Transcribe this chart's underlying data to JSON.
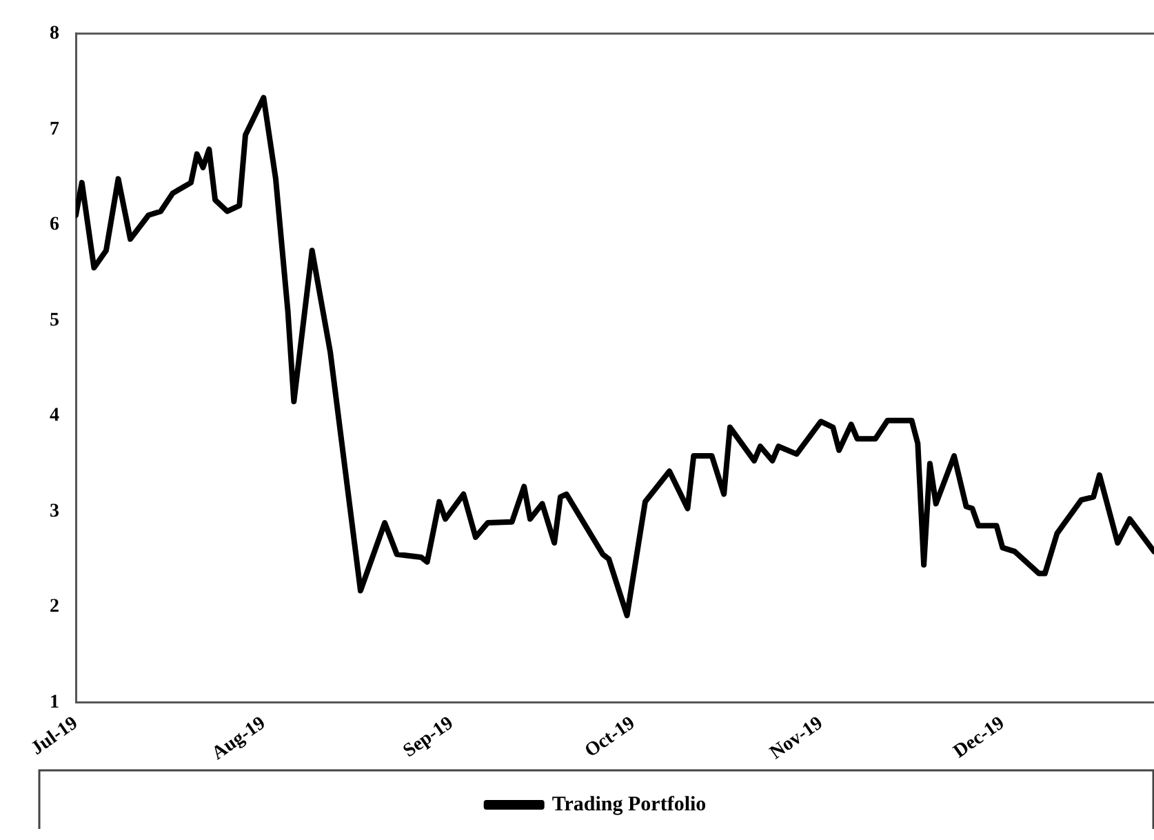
{
  "chart_data": {
    "type": "line",
    "legend": "bottom",
    "grid": false,
    "marker": "none",
    "line_style": "solid",
    "x": [
      "2019-07-01",
      "2019-07-02",
      "2019-07-04",
      "2019-07-06",
      "2019-07-08",
      "2019-07-10",
      "2019-07-13",
      "2019-07-15",
      "2019-07-17",
      "2019-07-20",
      "2019-07-21",
      "2019-07-22",
      "2019-07-23",
      "2019-07-24",
      "2019-07-26",
      "2019-07-28",
      "2019-07-29",
      "2019-08-01",
      "2019-08-03",
      "2019-08-05",
      "2019-08-06",
      "2019-08-09",
      "2019-08-12",
      "2019-08-17",
      "2019-08-21",
      "2019-08-23",
      "2019-08-27",
      "2019-08-28",
      "2019-08-30",
      "2019-08-31",
      "2019-09-03",
      "2019-09-05",
      "2019-09-07",
      "2019-09-11",
      "2019-09-13",
      "2019-09-14",
      "2019-09-16",
      "2019-09-18",
      "2019-09-19",
      "2019-09-20",
      "2019-09-26",
      "2019-09-27",
      "2019-09-30",
      "2019-10-03",
      "2019-10-07",
      "2019-10-10",
      "2019-10-11",
      "2019-10-14",
      "2019-10-16",
      "2019-10-17",
      "2019-10-21",
      "2019-10-22",
      "2019-10-24",
      "2019-10-25",
      "2019-10-28",
      "2019-11-01",
      "2019-11-03",
      "2019-11-04",
      "2019-11-06",
      "2019-11-07",
      "2019-11-10",
      "2019-11-12",
      "2019-11-16",
      "2019-11-17",
      "2019-11-18",
      "2019-11-19",
      "2019-11-20",
      "2019-11-23",
      "2019-11-25",
      "2019-11-26",
      "2019-11-27",
      "2019-11-30",
      "2019-12-01",
      "2019-12-03",
      "2019-12-07",
      "2019-12-08",
      "2019-12-10",
      "2019-12-14",
      "2019-12-16",
      "2019-12-17",
      "2019-12-20",
      "2019-12-22",
      "2019-12-26"
    ],
    "series": [
      {
        "name": "Trading Portfolio",
        "color": "#000000",
        "values": [
          6.1,
          6.44,
          5.55,
          5.73,
          6.48,
          5.85,
          6.1,
          6.14,
          6.33,
          6.44,
          6.74,
          6.6,
          6.79,
          6.26,
          6.14,
          6.2,
          6.94,
          7.33,
          6.48,
          5.1,
          4.15,
          5.73,
          4.67,
          2.17,
          2.88,
          2.55,
          2.52,
          2.47,
          3.1,
          2.92,
          3.18,
          2.73,
          2.88,
          2.89,
          3.26,
          2.92,
          3.08,
          2.67,
          3.15,
          3.18,
          2.55,
          2.5,
          1.91,
          3.1,
          3.42,
          3.03,
          3.58,
          3.58,
          3.18,
          3.88,
          3.53,
          3.68,
          3.53,
          3.68,
          3.6,
          3.94,
          3.88,
          3.64,
          3.91,
          3.76,
          3.76,
          3.95,
          3.95,
          3.71,
          2.44,
          3.5,
          3.08,
          3.58,
          3.05,
          3.03,
          2.85,
          2.85,
          2.62,
          2.58,
          2.35,
          2.35,
          2.77,
          3.12,
          3.15,
          3.38,
          2.67,
          2.92,
          2.58
        ]
      }
    ],
    "xlim": [
      "2019-07-01",
      "2019-12-26"
    ],
    "xticks": [
      {
        "value": "2019-07-01",
        "label": "Jul-19"
      },
      {
        "value": "2019-08-01",
        "label": "Aug-19"
      },
      {
        "value": "2019-09-01",
        "label": "Sep-19"
      },
      {
        "value": "2019-10-01",
        "label": "Oct-19"
      },
      {
        "value": "2019-11-01",
        "label": "Nov-19"
      },
      {
        "value": "2019-12-01",
        "label": "Dec-19"
      }
    ],
    "ylim": [
      1,
      8
    ],
    "yticks": [
      1,
      2,
      3,
      4,
      5,
      6,
      7,
      8
    ]
  }
}
